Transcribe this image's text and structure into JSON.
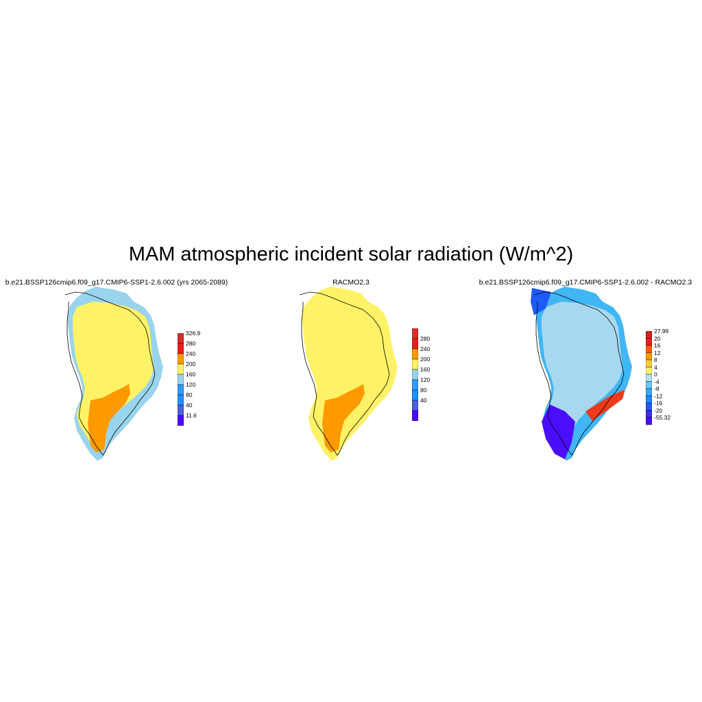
{
  "title": "MAM atmospheric incident solar radiation (W/m^2)",
  "panels": [
    {
      "id": "model",
      "title": "b.e21.BSSP126cmip6.f09_g17.CMIP6-SSP1-2.6.002 (yrs 2065-2089)",
      "colorbar": {
        "labels": [
          "326.9",
          "280",
          "240",
          "200",
          "160",
          "120",
          "80",
          "40",
          "11.6"
        ],
        "colors": [
          "#d62f27",
          "#ee1c1c",
          "#ff9900",
          "#fff266",
          "#99d4ee",
          "#3399ff",
          "#1e90ff",
          "#4a5ee0",
          "#4b0dff"
        ]
      },
      "regions": {
        "coast": "light-blue",
        "interior": "yellow",
        "south": "orange"
      }
    },
    {
      "id": "obs",
      "title": "RACMO2.3",
      "colorbar": {
        "labels": [
          "280",
          "240",
          "200",
          "160",
          "120",
          "80",
          "40"
        ],
        "colors": [
          "#d62f27",
          "#ee1c1c",
          "#ff9900",
          "#fff266",
          "#99d4ee",
          "#3399ff",
          "#1e90ff",
          "#4a5ee0",
          "#4b0dff"
        ]
      },
      "regions": {
        "coast": "yellow",
        "interior": "yellow",
        "south": "orange"
      }
    },
    {
      "id": "diff",
      "title": "b.e21.BSSP126cmip6.f09_g17.CMIP6-SSP1-2.6.002 - RACMO2.3",
      "colorbar": {
        "labels": [
          "27.99",
          "20",
          "16",
          "12",
          "8",
          "4",
          "0",
          "-4",
          "-8",
          "-12",
          "-16",
          "-20",
          "-55.32"
        ],
        "colors": [
          "#d71d1d",
          "#ee1c1c",
          "#ff5a00",
          "#ff9900",
          "#ffcc33",
          "#fff266",
          "#b3e2f5",
          "#66c6f5",
          "#33aaff",
          "#1e88ff",
          "#1e5aff",
          "#3a2fe8",
          "#4b0dff"
        ]
      },
      "regions": {
        "coast": "blue",
        "interior": "light-blue",
        "south": "dark-blue"
      }
    }
  ]
}
